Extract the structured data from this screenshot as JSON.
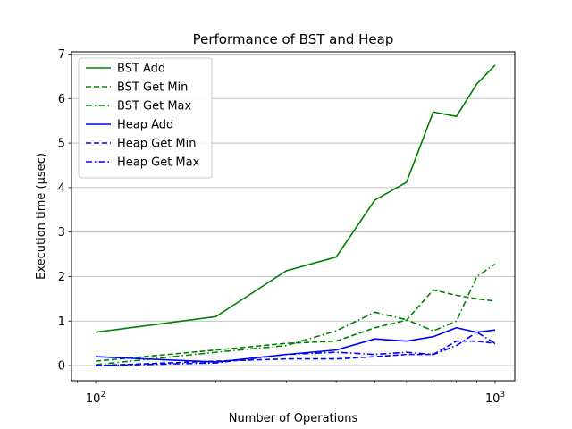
{
  "chart_data": {
    "type": "line",
    "title": "Performance of BST and Heap",
    "xlabel": "Number of Operations",
    "ylabel": "Execution time (μsec)",
    "xscale": "log",
    "xlim": [
      87,
      1120
    ],
    "ylim": [
      -0.34,
      7.05
    ],
    "grid": "y",
    "legend_position": "top-left",
    "x": [
      100,
      200,
      300,
      400,
      500,
      600,
      700,
      800,
      900,
      1000
    ],
    "x_ticks": [
      {
        "value": 100,
        "base": "10",
        "exp": "2"
      },
      {
        "value": 1000,
        "base": "10",
        "exp": "3"
      }
    ],
    "y_ticks": [
      {
        "value": 0,
        "label": "0"
      },
      {
        "value": 1,
        "label": "1"
      },
      {
        "value": 2,
        "label": "2"
      },
      {
        "value": 3,
        "label": "3"
      },
      {
        "value": 4,
        "label": "4"
      },
      {
        "value": 5,
        "label": "5"
      },
      {
        "value": 6,
        "label": "6"
      },
      {
        "value": 7,
        "label": "7"
      }
    ],
    "series": [
      {
        "name": "BST Add",
        "color": "#008000",
        "dash": "solid",
        "values": [
          0.75,
          1.1,
          2.13,
          2.44,
          3.72,
          4.12,
          5.7,
          5.6,
          6.33,
          6.75
        ]
      },
      {
        "name": "BST Get Min",
        "color": "#008000",
        "dash": "dashed",
        "values": [
          0.1,
          0.35,
          0.5,
          0.55,
          0.85,
          1.02,
          1.7,
          1.58,
          1.5,
          1.45
        ]
      },
      {
        "name": "BST Get Max",
        "color": "#008000",
        "dash": "dashdot",
        "values": [
          0.02,
          0.3,
          0.45,
          0.78,
          1.2,
          1.03,
          0.78,
          1.0,
          2.0,
          2.28
        ]
      },
      {
        "name": "Heap Add",
        "color": "#0000ff",
        "dash": "solid",
        "values": [
          0.2,
          0.08,
          0.25,
          0.35,
          0.6,
          0.55,
          0.65,
          0.85,
          0.75,
          0.8
        ]
      },
      {
        "name": "Heap Get Min",
        "color": "#0000ff",
        "dash": "dashed",
        "values": [
          0.0,
          0.1,
          0.15,
          0.15,
          0.2,
          0.25,
          0.25,
          0.55,
          0.55,
          0.5
        ]
      },
      {
        "name": "Heap Get Max",
        "color": "#0000ff",
        "dash": "dashdot",
        "values": [
          0.0,
          0.06,
          0.25,
          0.3,
          0.25,
          0.3,
          0.25,
          0.45,
          0.75,
          0.5
        ]
      }
    ]
  }
}
